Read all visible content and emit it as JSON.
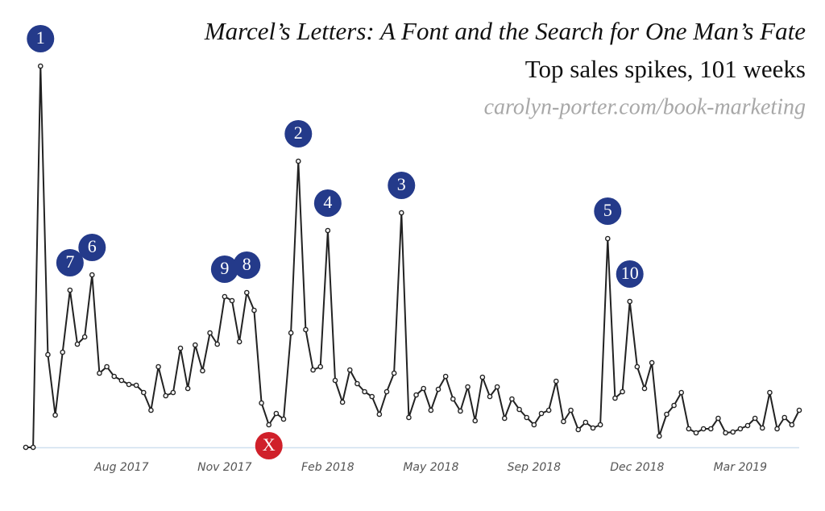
{
  "chart_data": {
    "type": "line",
    "title": "Marcel’s Letters: A Font and the Search for One Man’s Fate",
    "subtitle": "Top sales spikes, 101 weeks",
    "source": "carolyn-porter.com/book-marketing",
    "color": "#222222",
    "axis_color": "#cfe0ef",
    "ylim": [
      0,
      500
    ],
    "categories": [
      null,
      null,
      null,
      null,
      null,
      null,
      null,
      null,
      null,
      null,
      null,
      null,
      null,
      "Aug 2017",
      null,
      null,
      null,
      null,
      null,
      null,
      null,
      null,
      null,
      null,
      null,
      null,
      null,
      "Nov 2017",
      null,
      null,
      null,
      null,
      null,
      null,
      null,
      null,
      null,
      null,
      null,
      null,
      null,
      "Feb 2018",
      null,
      null,
      null,
      null,
      null,
      null,
      null,
      null,
      null,
      null,
      null,
      null,
      null,
      "May 2018",
      null,
      null,
      null,
      null,
      null,
      null,
      null,
      null,
      null,
      null,
      null,
      null,
      null,
      "Sep 2018",
      null,
      null,
      null,
      null,
      null,
      null,
      null,
      null,
      null,
      null,
      null,
      null,
      null,
      "Dec 2018",
      null,
      null,
      null,
      null,
      null,
      null,
      null,
      null,
      null,
      null,
      null,
      null,
      null,
      "Mar 2019",
      null,
      null,
      null,
      null,
      null,
      null,
      null,
      null
    ],
    "values": [
      0,
      0,
      473,
      115,
      40,
      118,
      195,
      128,
      137,
      214,
      92,
      100,
      88,
      83,
      78,
      77,
      68,
      46,
      100,
      64,
      68,
      123,
      73,
      127,
      95,
      142,
      128,
      187,
      182,
      131,
      192,
      170,
      55,
      28,
      42,
      35,
      142,
      355,
      146,
      96,
      100,
      269,
      83,
      56,
      96,
      79,
      69,
      63,
      41,
      69,
      92,
      291,
      37,
      65,
      73,
      46,
      72,
      88,
      60,
      45,
      75,
      33,
      87,
      63,
      75,
      36,
      60,
      47,
      37,
      28,
      42,
      46,
      82,
      32,
      46,
      22,
      31,
      24,
      28,
      259,
      61,
      69,
      181,
      100,
      73,
      105,
      14,
      41,
      52,
      68,
      23,
      18,
      23,
      23,
      36,
      18,
      19,
      23,
      27,
      36,
      24,
      68,
      23,
      37,
      28,
      46
    ],
    "annotations": [
      {
        "label": "1",
        "index": 2,
        "color": "#243a8a",
        "placement": "above"
      },
      {
        "label": "2",
        "index": 37,
        "color": "#243a8a",
        "placement": "above"
      },
      {
        "label": "3",
        "index": 51,
        "color": "#243a8a",
        "placement": "above"
      },
      {
        "label": "4",
        "index": 41,
        "color": "#243a8a",
        "placement": "above"
      },
      {
        "label": "5",
        "index": 79,
        "color": "#243a8a",
        "placement": "above"
      },
      {
        "label": "6",
        "index": 9,
        "color": "#243a8a",
        "placement": "above"
      },
      {
        "label": "7",
        "index": 6,
        "color": "#243a8a",
        "placement": "above"
      },
      {
        "label": "8",
        "index": 30,
        "color": "#243a8a",
        "placement": "above"
      },
      {
        "label": "9",
        "index": 27,
        "color": "#243a8a",
        "placement": "above"
      },
      {
        "label": "10",
        "index": 82,
        "color": "#243a8a",
        "placement": "above"
      },
      {
        "label": "X",
        "index": 33,
        "color": "#d0202a",
        "placement": "below"
      }
    ]
  }
}
